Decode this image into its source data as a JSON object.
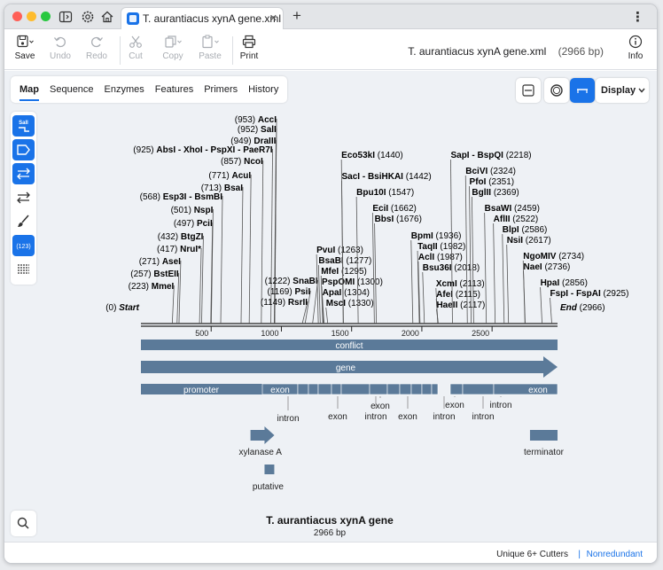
{
  "app": {
    "tab_title": "T. aurantiacus xynA gene.xml",
    "tab_close": "✕",
    "new_tab": "+",
    "doc_name": "T. aurantiacus xynA gene.xml",
    "doc_length": "(2966 bp)",
    "more_menu": "⋮"
  },
  "toolbar": {
    "save": "Save",
    "undo": "Undo",
    "redo": "Redo",
    "cut": "Cut",
    "copy": "Copy",
    "paste": "Paste",
    "print": "Print",
    "info": "Info"
  },
  "view_tabs": [
    "Map",
    "Sequence",
    "Enzymes",
    "Features",
    "Primers",
    "History"
  ],
  "display_label": "Display",
  "left_tools": {
    "enzyme_badge": "SalI",
    "numbers_badge": "(123)"
  },
  "status": {
    "cutters": "Unique 6+ Cutters",
    "separator": "|",
    "mode": "Nonredundant"
  },
  "colors": {
    "accent": "#1a73e8",
    "feature": "#5b7a99",
    "tick": "#333333",
    "background": "#eef1f5"
  },
  "map": {
    "title": "T. aurantiacus xynA gene",
    "length_label": "2966 bp",
    "sequence_length": 2966,
    "scale": {
      "start_label": "Start",
      "end_label": "End",
      "start_pos": "(0)",
      "end_pos": "(2966)"
    },
    "ticks": [
      500,
      1000,
      1500,
      2000,
      2500
    ],
    "enzymes_left": [
      {
        "pos": 223,
        "pos_label": "(223)",
        "name": "MmeI"
      },
      {
        "pos": 257,
        "pos_label": "(257)",
        "name": "BstEII"
      },
      {
        "pos": 271,
        "pos_label": "(271)",
        "name": "AseI"
      },
      {
        "pos": 417,
        "pos_label": "(417)",
        "name": "NruI*"
      },
      {
        "pos": 432,
        "pos_label": "(432)",
        "name": "BtgZI"
      },
      {
        "pos": 497,
        "pos_label": "(497)",
        "name": "PciI"
      },
      {
        "pos": 501,
        "pos_label": "(501)",
        "name": "NspI"
      },
      {
        "pos": 568,
        "pos_label": "(568)",
        "name": "Esp3I - BsmBI"
      },
      {
        "pos": 713,
        "pos_label": "(713)",
        "name": "BsaI"
      },
      {
        "pos": 771,
        "pos_label": "(771)",
        "name": "AcuI"
      },
      {
        "pos": 857,
        "pos_label": "(857)",
        "name": "NcoI"
      },
      {
        "pos": 925,
        "pos_label": "(925)",
        "name": "AbsI - XhoI - PspXI - PaeR7I"
      },
      {
        "pos": 949,
        "pos_label": "(949)",
        "name": "DraIII"
      },
      {
        "pos": 952,
        "pos_label": "(952)",
        "name": "SalI"
      },
      {
        "pos": 953,
        "pos_label": "(953)",
        "name": "AccI"
      }
    ],
    "enzymes_mid_left": [
      {
        "pos": 1149,
        "pos_label": "(1149)",
        "name": "RsrII"
      },
      {
        "pos": 1169,
        "pos_label": "(1169)",
        "name": "PsiI"
      },
      {
        "pos": 1222,
        "pos_label": "(1222)",
        "name": "SnaBI"
      }
    ],
    "enzymes_right": [
      {
        "pos": 1263,
        "name": "PvuI",
        "pos_label": "(1263)"
      },
      {
        "pos": 1277,
        "name": "BsaBI",
        "pos_label": "(1277)"
      },
      {
        "pos": 1295,
        "name": "MfeI",
        "pos_label": "(1295)"
      },
      {
        "pos": 1300,
        "name": "PspOMI",
        "pos_label": "(1300)"
      },
      {
        "pos": 1304,
        "name": "ApaI",
        "pos_label": "(1304)"
      },
      {
        "pos": 1330,
        "name": "MscI",
        "pos_label": "(1330)"
      },
      {
        "pos": 1440,
        "name": "Eco53kI",
        "pos_label": "(1440)"
      },
      {
        "pos": 1442,
        "name": "SacI - BsiHKAI",
        "pos_label": "(1442)"
      },
      {
        "pos": 1547,
        "name": "Bpu10I",
        "pos_label": "(1547)"
      },
      {
        "pos": 1662,
        "name": "EciI",
        "pos_label": "(1662)"
      },
      {
        "pos": 1676,
        "name": "BbsI",
        "pos_label": "(1676)"
      },
      {
        "pos": 1936,
        "name": "BpmI",
        "pos_label": "(1936)"
      },
      {
        "pos": 1982,
        "name": "TaqII",
        "pos_label": "(1982)"
      },
      {
        "pos": 1987,
        "name": "AclI",
        "pos_label": "(1987)"
      },
      {
        "pos": 2018,
        "name": "Bsu36I",
        "pos_label": "(2018)"
      },
      {
        "pos": 2113,
        "name": "XcmI",
        "pos_label": "(2113)"
      },
      {
        "pos": 2115,
        "name": "AfeI",
        "pos_label": "(2115)"
      },
      {
        "pos": 2117,
        "name": "HaeII",
        "pos_label": "(2117)"
      },
      {
        "pos": 2218,
        "name": "SapI - BspQI",
        "pos_label": "(2218)"
      },
      {
        "pos": 2324,
        "name": "BciVI",
        "pos_label": "(2324)"
      },
      {
        "pos": 2351,
        "name": "PfoI",
        "pos_label": "(2351)"
      },
      {
        "pos": 2369,
        "name": "BglII",
        "pos_label": "(2369)"
      },
      {
        "pos": 2459,
        "name": "BsaWI",
        "pos_label": "(2459)"
      },
      {
        "pos": 2522,
        "name": "AflII",
        "pos_label": "(2522)"
      },
      {
        "pos": 2586,
        "name": "BlpI",
        "pos_label": "(2586)"
      },
      {
        "pos": 2617,
        "name": "NsiI",
        "pos_label": "(2617)"
      },
      {
        "pos": 2734,
        "name": "NgoMIV",
        "pos_label": "(2734)"
      },
      {
        "pos": 2736,
        "name": "NaeI",
        "pos_label": "(2736)"
      },
      {
        "pos": 2856,
        "name": "HpaI",
        "pos_label": "(2856)"
      },
      {
        "pos": 2925,
        "name": "FspI - FspAI",
        "pos_label": "(2925)"
      }
    ],
    "features": {
      "conflict": "conflict",
      "gene": "gene",
      "promoter": "promoter",
      "exon": "exon",
      "intron": "intron",
      "xylanase": "xylanase A",
      "terminator": "terminator",
      "putative": "putative"
    }
  }
}
